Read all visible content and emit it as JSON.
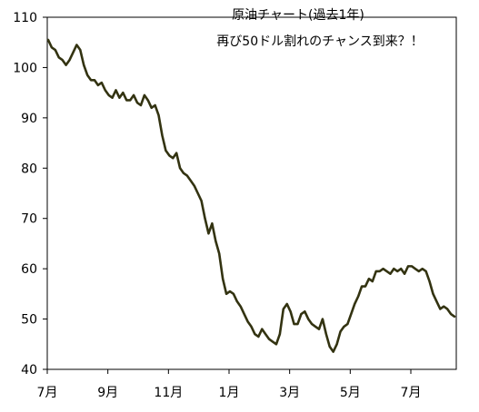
{
  "chart_data": {
    "type": "line",
    "title": [
      "原油チャート(過去1年)",
      "再び50ドル割れのチャンス到来？！"
    ],
    "xlabel": "",
    "ylabel": "",
    "ylim": [
      40,
      110
    ],
    "y_ticks": [
      40,
      50,
      60,
      70,
      80,
      90,
      100,
      110
    ],
    "x_tick_labels": [
      "7月",
      "9月",
      "11月",
      "1月",
      "3月",
      "5月",
      "7月"
    ],
    "grid": false,
    "line_color": "#333311",
    "series": [
      {
        "values": [
          105.5,
          104.0,
          103.5,
          102.0,
          101.5,
          100.5,
          101.5,
          103.0,
          104.5,
          103.5,
          100.5,
          98.5,
          97.5,
          97.5,
          96.5,
          97.0,
          95.5,
          94.5,
          94.0,
          95.5,
          94.0,
          95.0,
          93.5,
          93.5,
          94.5,
          93.0,
          92.5,
          94.5,
          93.5,
          92.0,
          92.5,
          90.5,
          86.5,
          83.5,
          82.5,
          82.0,
          83.0,
          80.0,
          79.0,
          78.5,
          77.5,
          76.5,
          75.0,
          73.5,
          70.0,
          67.0,
          69.0,
          65.5,
          63.0,
          58.0,
          55.0,
          55.5,
          55.0,
          53.5,
          52.5,
          51.0,
          49.5,
          48.5,
          47.0,
          46.5,
          48.0,
          47.0,
          46.0,
          45.5,
          45.0,
          47.0,
          52.0,
          53.0,
          51.5,
          49.0,
          49.0,
          51.0,
          51.5,
          50.0,
          49.0,
          48.5,
          48.0,
          50.0,
          47.0,
          44.5,
          43.5,
          45.0,
          47.5,
          48.5,
          49.0,
          51.0,
          53.0,
          54.5,
          56.5,
          56.5,
          58.0,
          57.5,
          59.5,
          59.5,
          60.0,
          59.5,
          59.0,
          60.0,
          59.5,
          60.0,
          59.0,
          60.5,
          60.5,
          60.0,
          59.5,
          60.0,
          59.5,
          57.5,
          55.0,
          53.5,
          52.0,
          52.5,
          52.0,
          51.0,
          50.5
        ]
      }
    ]
  }
}
